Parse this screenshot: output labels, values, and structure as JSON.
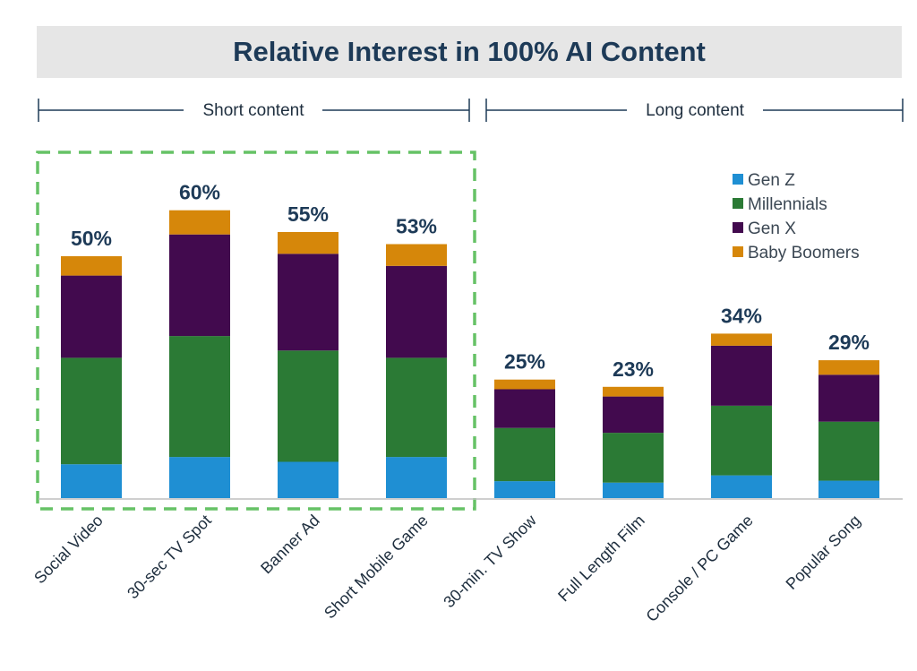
{
  "title": "Relative Interest in 100% AI Content",
  "groups": [
    {
      "label": "Short content"
    },
    {
      "label": "Long content"
    }
  ],
  "colors": {
    "Gen Z": "#1f8fd3",
    "Millennials": "#2b7a35",
    "Gen X": "#420a4e",
    "Baby Boomers": "#d6870a",
    "highlight": "#66c266",
    "bracket": "#1d3a57"
  },
  "chart_data": {
    "type": "bar",
    "stacked": true,
    "categories": [
      "Social Video",
      "30-sec TV Spot",
      "Banner Ad",
      "Short Mobile Game",
      "30-min. TV Show",
      "Full Length Film",
      "Console / PC Game",
      "Popular Song"
    ],
    "totals": [
      "50%",
      "60%",
      "55%",
      "53%",
      "25%",
      "23%",
      "34%",
      "29%"
    ],
    "series": [
      {
        "name": "Gen Z",
        "values": [
          7,
          8.5,
          7.5,
          8.5,
          3.5,
          3.2,
          4.7,
          3.6
        ]
      },
      {
        "name": "Millennials",
        "values": [
          22,
          25,
          23,
          20.5,
          11,
          10.3,
          14.4,
          12.2
        ]
      },
      {
        "name": "Gen X",
        "values": [
          17,
          21,
          20,
          19,
          8,
          7.5,
          12.4,
          9.7
        ]
      },
      {
        "name": "Baby Boomers",
        "values": [
          4,
          5,
          4.5,
          4.5,
          2,
          2,
          2.5,
          3
        ]
      }
    ],
    "ylim": [
      0,
      60
    ],
    "legend_position": "top-right"
  }
}
